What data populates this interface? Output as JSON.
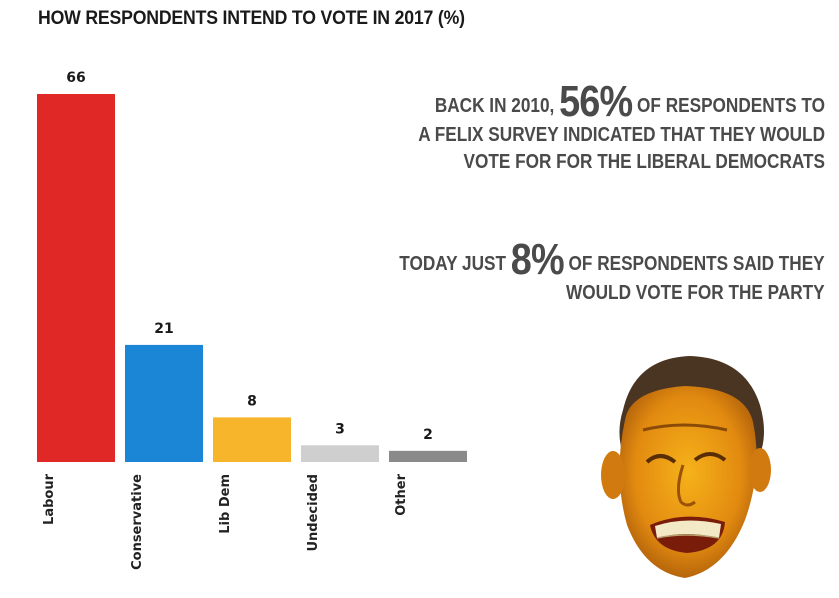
{
  "title": {
    "text": "HOW RESPONDENTS INTEND TO VOTE IN 2017",
    "unit": "(%)"
  },
  "chart_data": {
    "type": "bar",
    "title": "HOW RESPONDENTS INTEND TO VOTE IN 2017 (%)",
    "categories": [
      "Labour",
      "Conservative",
      "Lib Dem",
      "Undecided",
      "Other"
    ],
    "values": [
      66,
      21,
      8,
      3,
      2
    ],
    "colors": [
      "#e02826",
      "#1b86d6",
      "#f6b52b",
      "#cfcfcf",
      "#8a8a8a"
    ],
    "ylim": [
      0,
      66
    ],
    "value_labels": true,
    "orientation_of_category_labels": "vertical",
    "grid": false,
    "legend": "none"
  },
  "callouts": {
    "first": {
      "before": "BACK IN 2010, ",
      "highlight": "56%",
      "after": " OF RESPONDENTS TO",
      "line2": "A FELIX SURVEY INDICATED THAT THEY WOULD",
      "line3": "VOTE FOR FOR THE LIBERAL DEMOCRATS"
    },
    "second": {
      "before": "TODAY JUST ",
      "highlight": "8%",
      "after": " OF RESPONDENTS SAID THEY",
      "line2": "WOULD VOTE FOR THE PARTY"
    }
  },
  "photo": {
    "icon": "grimacing-face-icon"
  }
}
